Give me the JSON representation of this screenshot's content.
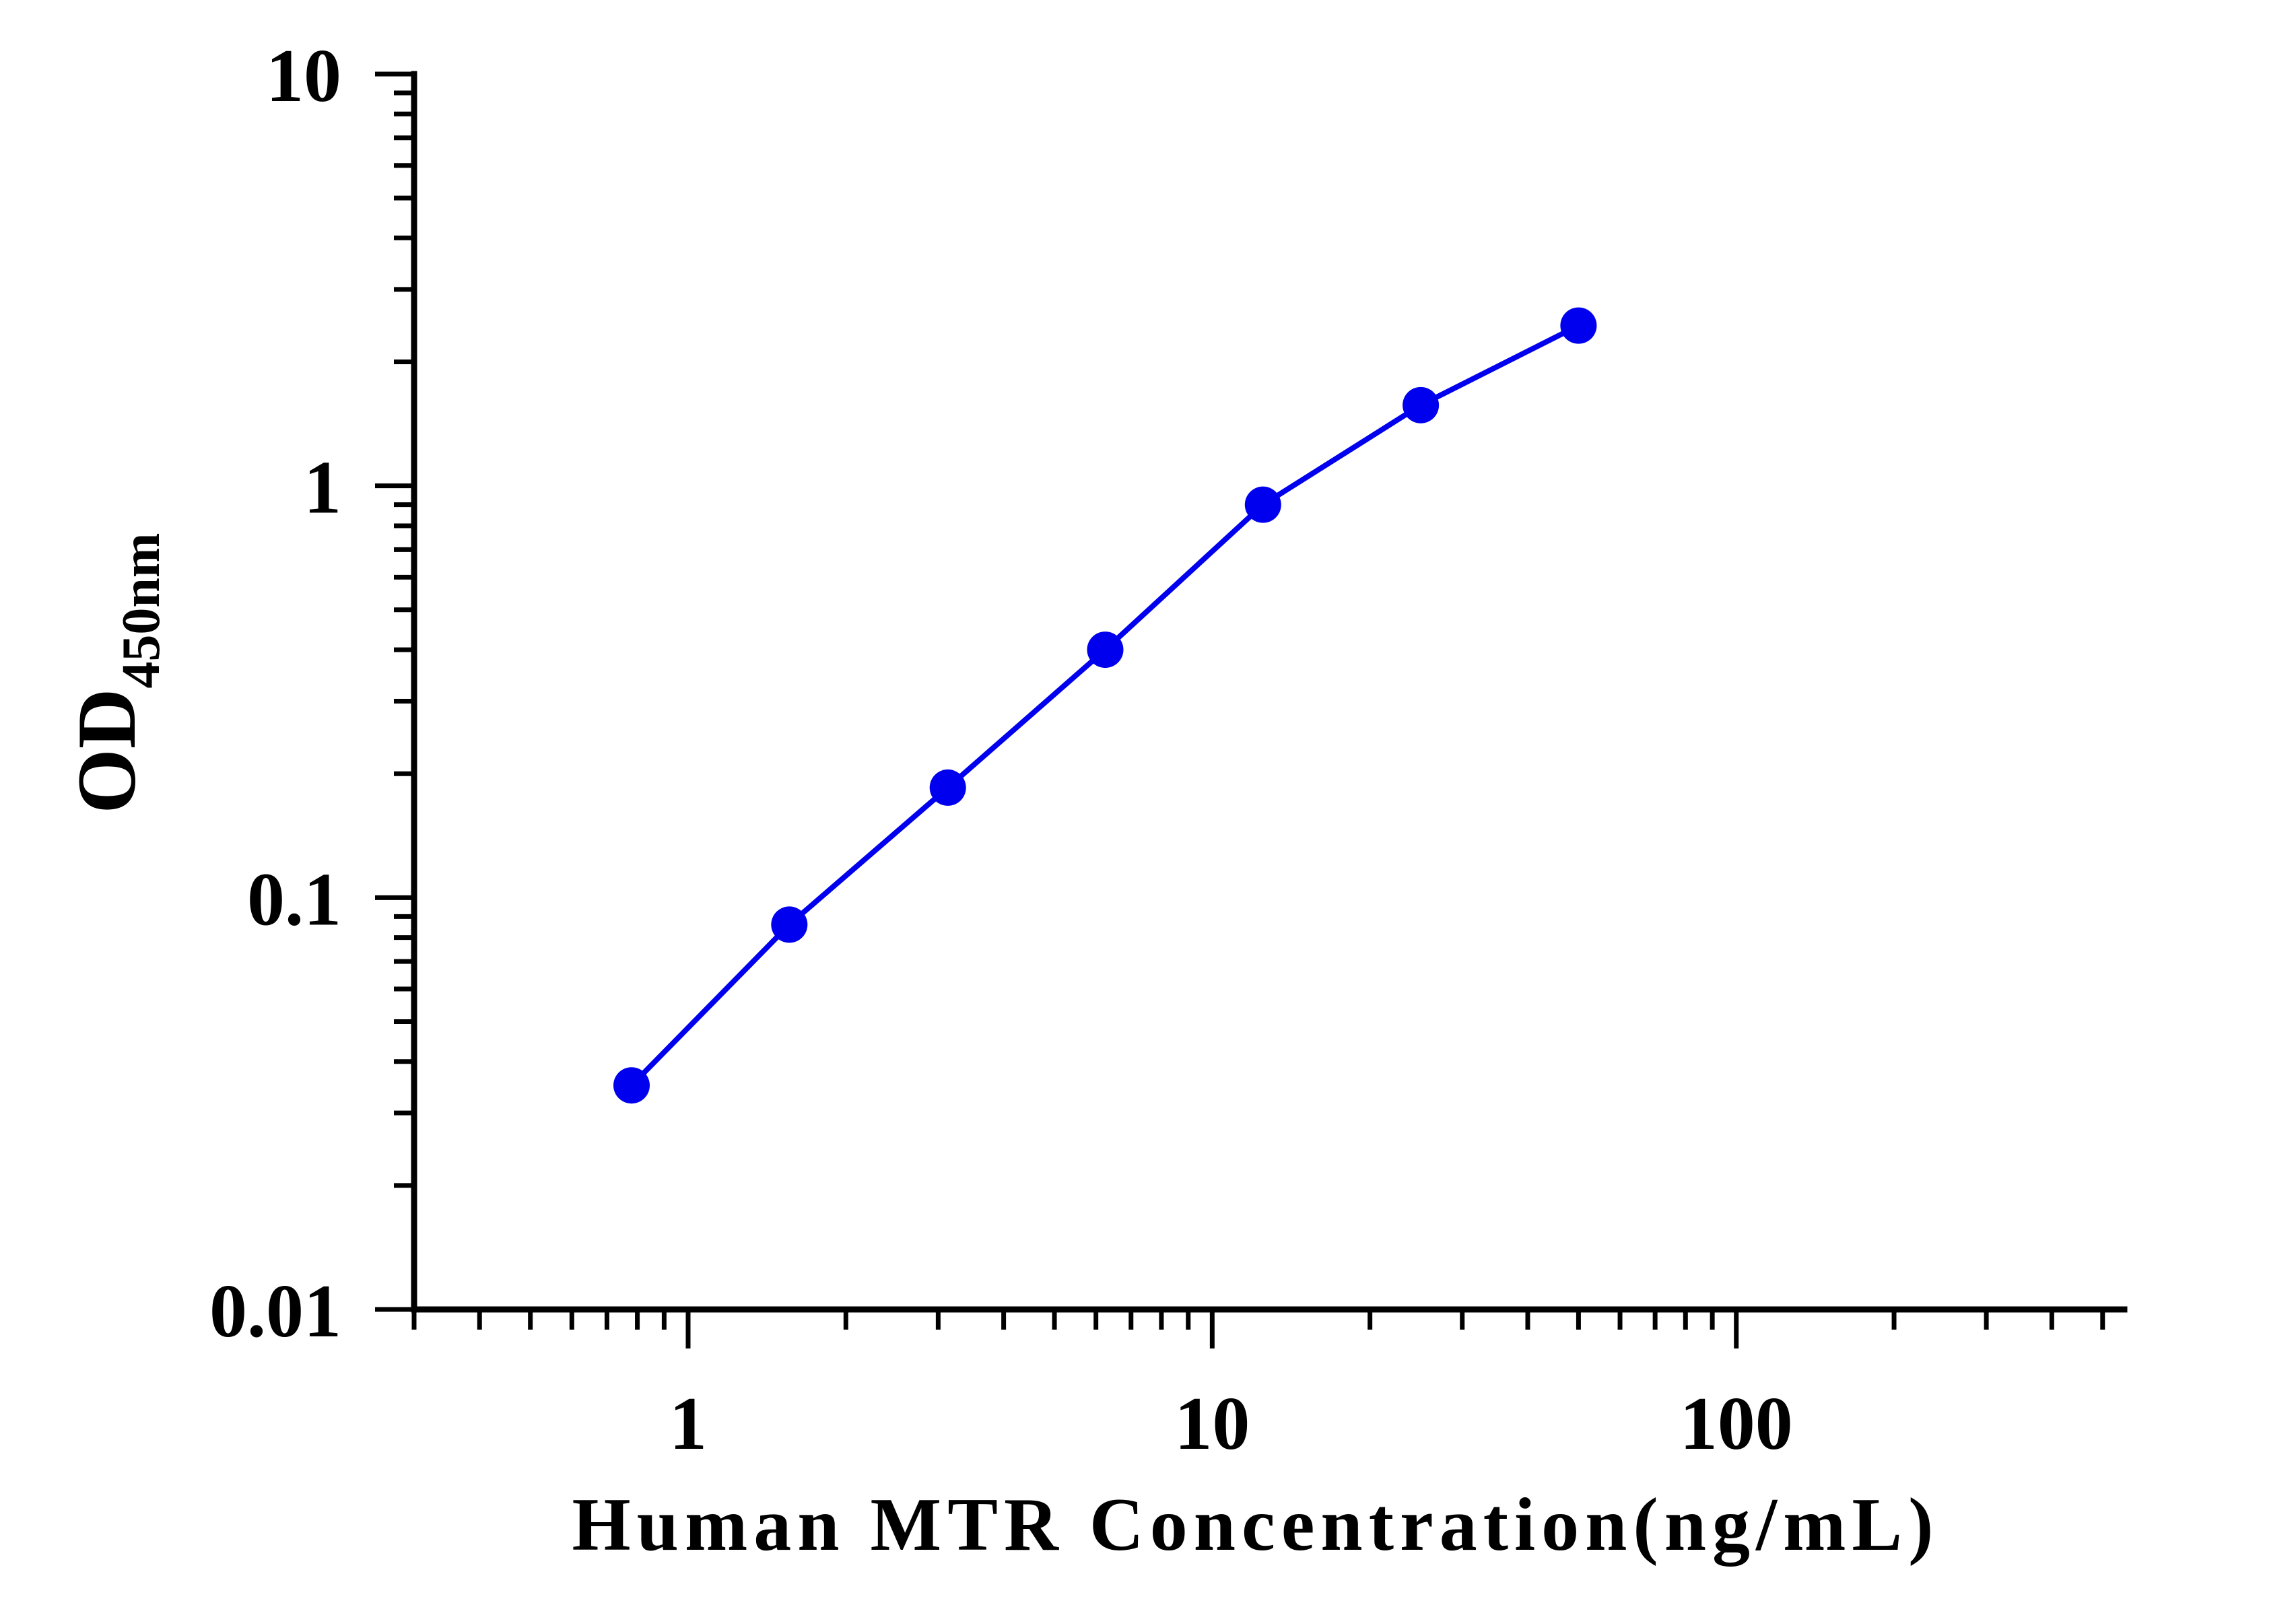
{
  "chart_data": {
    "type": "line",
    "xscale": "log",
    "yscale": "log",
    "xlim": [
      0.3,
      550
    ],
    "ylim": [
      0.01,
      10
    ],
    "x_ticks": [
      {
        "value": 1,
        "label": "1"
      },
      {
        "value": 10,
        "label": "10"
      },
      {
        "value": 100,
        "label": "100"
      }
    ],
    "y_ticks": [
      {
        "value": 0.01,
        "label": "0.01"
      },
      {
        "value": 0.1,
        "label": "0.1"
      },
      {
        "value": 1,
        "label": "1"
      },
      {
        "value": 10,
        "label": "10"
      }
    ],
    "xlabel": "Human MTR Concentration(ng/mL)",
    "ylabel": {
      "main": "OD",
      "subscript": "450nm"
    },
    "grid": false,
    "legend": "none",
    "series": [
      {
        "color": "#0000ee",
        "x": [
          0.78,
          1.56,
          3.13,
          6.25,
          12.5,
          25,
          50
        ],
        "y": [
          0.035,
          0.086,
          0.185,
          0.4,
          0.9,
          1.57,
          2.45
        ]
      }
    ]
  }
}
